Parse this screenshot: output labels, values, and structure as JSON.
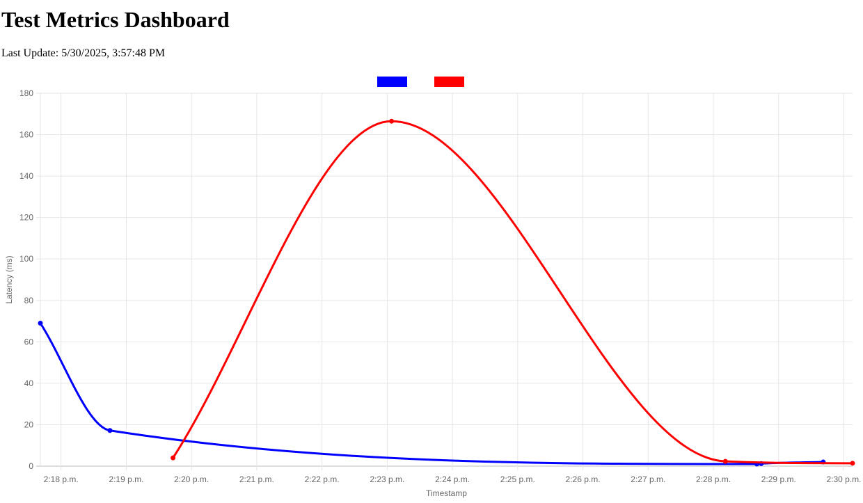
{
  "page": {
    "title": "Test Metrics Dashboard",
    "last_update_label": "Last Update:",
    "last_update_value": "5/30/2025, 3:57:48 PM"
  },
  "chart_data": {
    "type": "line",
    "title": "",
    "xlabel": "Timestamp",
    "ylabel": "Latency (ms)",
    "x_tick_labels": [
      "2:18 p.m.",
      "2:19 p.m.",
      "2:20 p.m.",
      "2:21 p.m.",
      "2:22 p.m.",
      "2:23 p.m.",
      "2:24 p.m.",
      "2:25 p.m.",
      "2:26 p.m.",
      "2:27 p.m.",
      "2:28 p.m.",
      "2:29 p.m.",
      "2:30 p.m."
    ],
    "y_ticks": [
      0,
      20,
      40,
      60,
      80,
      100,
      120,
      140,
      160,
      180
    ],
    "xlim": [
      "2:17:41 p.m.",
      "2:30:08 p.m."
    ],
    "ylim": [
      0,
      180
    ],
    "grid": true,
    "legend": {
      "position": "top-center",
      "show_labels": false
    },
    "curve": "smooth",
    "series": [
      {
        "color": "#0000ff",
        "points": [
          {
            "x": "2:17:41 p.m.",
            "y": 69
          },
          {
            "x": "2:18:45 p.m.",
            "y": 17.2
          },
          {
            "x": "2:28:40 p.m.",
            "y": 1
          },
          {
            "x": "2:28:44 p.m.",
            "y": 1.2
          },
          {
            "x": "2:29:41 p.m.",
            "y": 2
          }
        ]
      },
      {
        "color": "#ff0000",
        "points": [
          {
            "x": "2:19:43 p.m.",
            "y": 4
          },
          {
            "x": "2:23:04 p.m.",
            "y": 166.5
          },
          {
            "x": "2:28:11 p.m.",
            "y": 2.3
          },
          {
            "x": "2:30:08 p.m.",
            "y": 1.4
          }
        ]
      }
    ]
  }
}
